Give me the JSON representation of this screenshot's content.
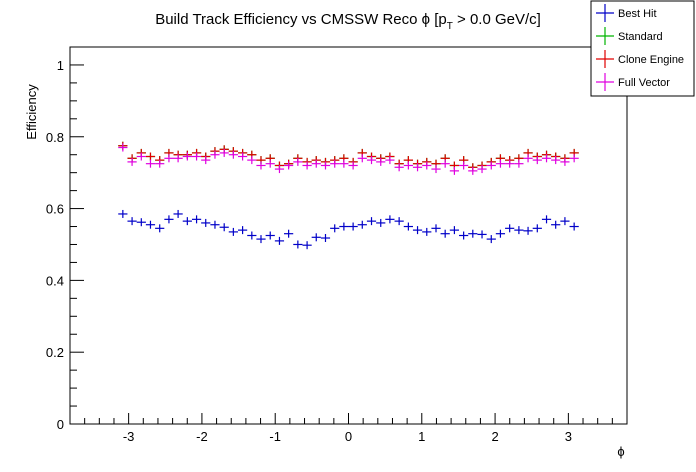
{
  "chart_data": {
    "type": "scatter",
    "title_main": "Build Track Efficiency vs CMSSW Reco ϕ [p",
    "title_sub": "T",
    "title_end": " > 0.0 GeV/c]",
    "xlabel": "ϕ",
    "ylabel": "Efficiency",
    "xlim": [
      -3.8,
      3.8
    ],
    "ylim": [
      0,
      1.05
    ],
    "x_ticks": [
      -3,
      -2,
      -1,
      0,
      1,
      2,
      3
    ],
    "x_tick_labels": [
      "-3",
      "-2",
      "-1",
      "0",
      "1",
      "2",
      "3"
    ],
    "y_ticks": [
      0,
      0.2,
      0.4,
      0.6,
      0.8,
      1
    ],
    "y_tick_labels": [
      "0",
      "0.2",
      "0.4",
      "0.6",
      "0.8",
      "1"
    ],
    "grid": false,
    "legend_position": "top-right",
    "bin_halfwidth": 0.0628,
    "x": [
      -3.079,
      -2.953,
      -2.827,
      -2.702,
      -2.576,
      -2.45,
      -2.325,
      -2.199,
      -2.073,
      -1.948,
      -1.822,
      -1.696,
      -1.571,
      -1.445,
      -1.319,
      -1.194,
      -1.068,
      -0.942,
      -0.817,
      -0.691,
      -0.565,
      -0.44,
      -0.314,
      -0.188,
      -0.063,
      0.063,
      0.188,
      0.314,
      0.44,
      0.565,
      0.691,
      0.817,
      0.942,
      1.068,
      1.194,
      1.319,
      1.445,
      1.571,
      1.696,
      1.822,
      1.948,
      2.073,
      2.199,
      2.325,
      2.45,
      2.576,
      2.702,
      2.827,
      2.953,
      3.079
    ],
    "series": [
      {
        "name": "Best Hit",
        "color": "#0000c8",
        "values": [
          0.585,
          0.565,
          0.562,
          0.555,
          0.545,
          0.57,
          0.585,
          0.565,
          0.57,
          0.56,
          0.555,
          0.548,
          0.535,
          0.54,
          0.525,
          0.515,
          0.525,
          0.51,
          0.53,
          0.5,
          0.498,
          0.52,
          0.518,
          0.545,
          0.55,
          0.55,
          0.555,
          0.565,
          0.56,
          0.57,
          0.565,
          0.55,
          0.54,
          0.535,
          0.545,
          0.53,
          0.54,
          0.525,
          0.53,
          0.528,
          0.515,
          0.53,
          0.545,
          0.54,
          0.538,
          0.545,
          0.57,
          0.555,
          0.565,
          0.55
        ]
      },
      {
        "name": "Standard",
        "color": "#00b400",
        "values": [
          0.775,
          0.74,
          0.755,
          0.745,
          0.735,
          0.755,
          0.75,
          0.75,
          0.755,
          0.745,
          0.76,
          0.765,
          0.76,
          0.755,
          0.75,
          0.735,
          0.74,
          0.72,
          0.725,
          0.74,
          0.73,
          0.735,
          0.73,
          0.735,
          0.74,
          0.73,
          0.755,
          0.745,
          0.74,
          0.745,
          0.725,
          0.735,
          0.725,
          0.73,
          0.725,
          0.74,
          0.72,
          0.735,
          0.715,
          0.72,
          0.73,
          0.74,
          0.735,
          0.74,
          0.755,
          0.745,
          0.75,
          0.745,
          0.74,
          0.755
        ]
      },
      {
        "name": "Clone Engine",
        "color": "#e00000",
        "values": [
          0.775,
          0.74,
          0.755,
          0.745,
          0.735,
          0.755,
          0.75,
          0.75,
          0.755,
          0.745,
          0.76,
          0.765,
          0.76,
          0.755,
          0.75,
          0.735,
          0.74,
          0.72,
          0.725,
          0.74,
          0.73,
          0.735,
          0.73,
          0.735,
          0.74,
          0.73,
          0.755,
          0.745,
          0.74,
          0.745,
          0.725,
          0.735,
          0.725,
          0.73,
          0.725,
          0.74,
          0.72,
          0.735,
          0.715,
          0.72,
          0.73,
          0.74,
          0.735,
          0.74,
          0.755,
          0.745,
          0.75,
          0.745,
          0.74,
          0.755
        ]
      },
      {
        "name": "Full Vector",
        "color": "#e000e0",
        "values": [
          0.77,
          0.73,
          0.745,
          0.725,
          0.725,
          0.74,
          0.74,
          0.745,
          0.745,
          0.735,
          0.75,
          0.755,
          0.75,
          0.745,
          0.735,
          0.72,
          0.725,
          0.71,
          0.72,
          0.73,
          0.72,
          0.725,
          0.72,
          0.725,
          0.725,
          0.72,
          0.74,
          0.735,
          0.73,
          0.735,
          0.715,
          0.72,
          0.715,
          0.72,
          0.71,
          0.725,
          0.705,
          0.72,
          0.705,
          0.71,
          0.72,
          0.725,
          0.725,
          0.725,
          0.74,
          0.735,
          0.74,
          0.735,
          0.73,
          0.74
        ]
      }
    ]
  }
}
